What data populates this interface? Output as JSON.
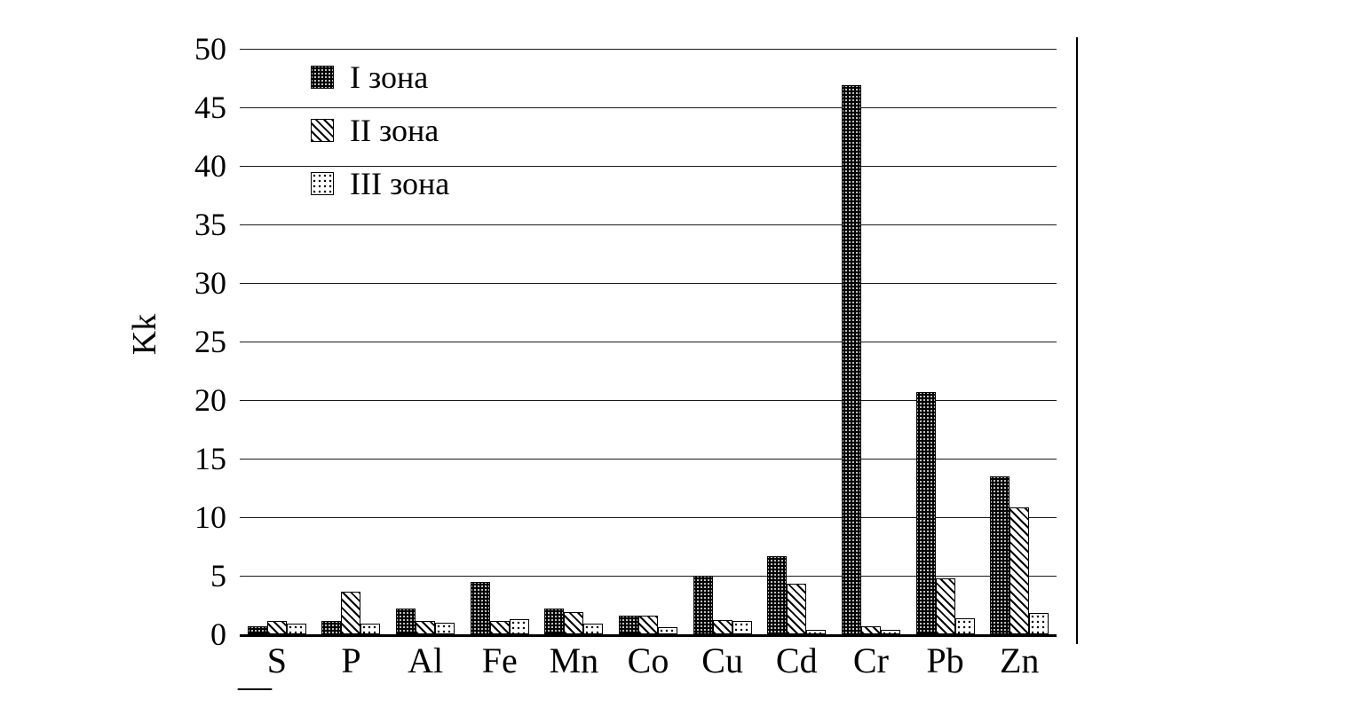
{
  "chart_data": {
    "type": "bar",
    "title": "",
    "xlabel": "",
    "ylabel": "Kk",
    "ylim": [
      0,
      50
    ],
    "yticks": [
      0,
      5,
      10,
      15,
      20,
      25,
      30,
      35,
      40,
      45,
      50
    ],
    "grid": "horizontal",
    "legend_position": "top-left-inside",
    "categories": [
      "S",
      "P",
      "Al",
      "Fe",
      "Mn",
      "Co",
      "Cu",
      "Cd",
      "Cr",
      "Pb",
      "Zn"
    ],
    "series": [
      {
        "name": "I зона",
        "pattern": "dense-dark-dots",
        "values": [
          0.7,
          1.1,
          2.2,
          4.5,
          2.2,
          1.6,
          5.0,
          6.7,
          46.9,
          20.7,
          13.5
        ]
      },
      {
        "name": "II зона",
        "pattern": "diagonal-hatch",
        "values": [
          1.1,
          3.6,
          1.1,
          1.1,
          1.9,
          1.6,
          1.2,
          4.3,
          0.7,
          4.8,
          10.8
        ]
      },
      {
        "name": "III зона",
        "pattern": "light-dots",
        "values": [
          0.9,
          0.9,
          1.0,
          1.3,
          0.9,
          0.6,
          1.1,
          0.4,
          0.4,
          1.4,
          1.8
        ]
      }
    ],
    "colors": {
      "foreground": "#000000",
      "background": "#ffffff"
    }
  },
  "decorations": {
    "axis_underscore": "__"
  }
}
